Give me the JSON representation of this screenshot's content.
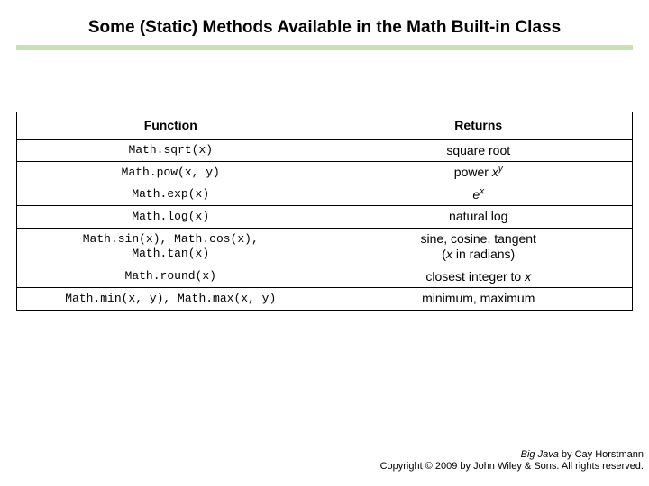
{
  "title": "Some (Static) Methods Available in the Math Built-in Class",
  "title_fontsize": 19,
  "underline_color": "#c8e0b8",
  "background_color": "#ffffff",
  "border_color": "#000000",
  "table": {
    "columns": [
      "Function",
      "Returns"
    ],
    "header_fontsize": 14,
    "cell_fontsize": 14,
    "mono_font": "Courier New",
    "body_font": "Arial",
    "col_widths": [
      "50%",
      "50%"
    ],
    "rows": [
      {
        "func": "Math.sqrt(x)",
        "ret_html": "square root"
      },
      {
        "func": "Math.pow(x, y)",
        "ret_html": "power <span class=\"ital\">x<span class=\"sup\">y</span></span>"
      },
      {
        "func": "Math.exp(x)",
        "ret_html": "<span class=\"ital\">e<span class=\"sup\">x</span></span>"
      },
      {
        "func": "Math.log(x)",
        "ret_html": "natural log"
      },
      {
        "func": "Math.sin(x), Math.cos(x),\nMath.tan(x)",
        "ret_html": "sine, cosine, tangent<br>(<span class=\"ital\">x</span> in radians)"
      },
      {
        "func": "Math.round(x)",
        "ret_html": "closest integer to <span class=\"ital\">x</span>"
      },
      {
        "func": "Math.min(x, y), Math.max(x, y)",
        "ret_html": "minimum, maximum"
      }
    ]
  },
  "footer": {
    "book_title": "Big Java",
    "by_text": " by Cay Horstmann",
    "copyright": "Copyright © 2009 by John Wiley & Sons. All rights reserved.",
    "fontsize": 11
  }
}
